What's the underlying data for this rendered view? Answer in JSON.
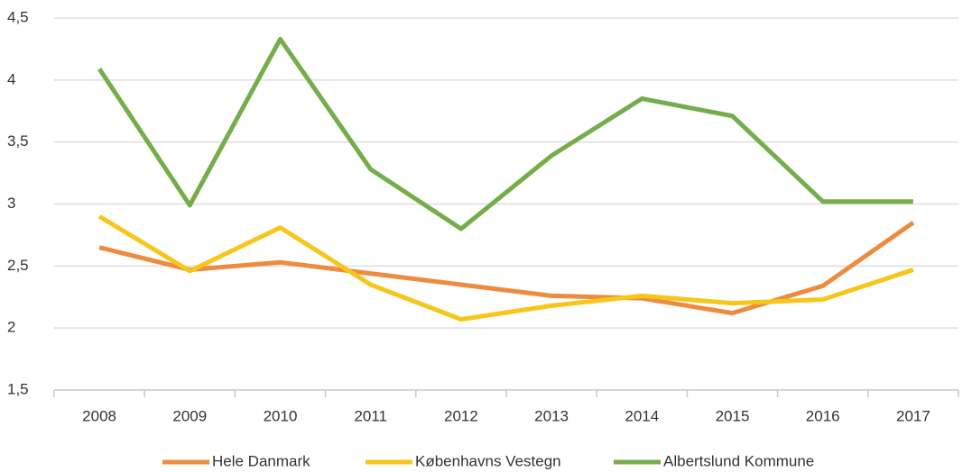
{
  "chart_data": {
    "type": "line",
    "categories": [
      "2008",
      "2009",
      "2010",
      "2011",
      "2012",
      "2013",
      "2014",
      "2015",
      "2016",
      "2017"
    ],
    "series": [
      {
        "name": "Hele Danmark",
        "color": "#ed8b3f",
        "values": [
          2.65,
          2.47,
          2.53,
          2.44,
          2.35,
          2.26,
          2.24,
          2.12,
          2.34,
          2.85
        ]
      },
      {
        "name": "Københavns Vestegn",
        "color": "#f7c61a",
        "values": [
          2.9,
          2.46,
          2.81,
          2.35,
          2.07,
          2.18,
          2.26,
          2.2,
          2.23,
          2.47
        ]
      },
      {
        "name": "Albertslund Kommune",
        "color": "#76ad4b",
        "values": [
          4.09,
          2.99,
          4.33,
          3.28,
          2.8,
          3.39,
          3.85,
          3.71,
          3.02,
          3.02
        ]
      }
    ],
    "ylim": [
      1.5,
      4.5
    ],
    "yticks": [
      {
        "value": 1.5,
        "label": "1,5"
      },
      2,
      {
        "value": 2.5,
        "label": "2,5"
      },
      3,
      {
        "value": 3.5,
        "label": "3,5"
      },
      4,
      {
        "value": 4.5,
        "label": "4,5"
      }
    ],
    "grid": true,
    "legend": "bottom"
  }
}
